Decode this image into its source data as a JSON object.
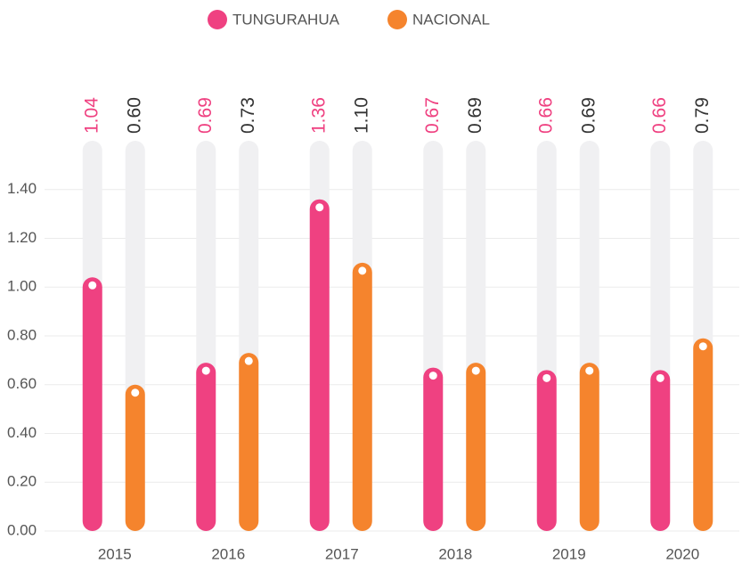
{
  "chart_data": {
    "type": "bar",
    "categories": [
      "2015",
      "2016",
      "2017",
      "2018",
      "2019",
      "2020"
    ],
    "series": [
      {
        "name": "TUNGURAHUA",
        "color": "#ef4181",
        "values": [
          1.04,
          0.69,
          1.36,
          0.67,
          0.66,
          0.66
        ],
        "value_labels": [
          "1.04",
          "0.69",
          "1.36",
          "0.67",
          "0.66",
          "0.66"
        ]
      },
      {
        "name": "NACIONAL",
        "color": "#f5842d",
        "values": [
          0.6,
          0.73,
          1.1,
          0.69,
          0.69,
          0.79
        ],
        "value_labels": [
          "0.60",
          "0.73",
          "1.10",
          "0.69",
          "0.69",
          "0.79"
        ]
      }
    ],
    "ylim": [
      0,
      1.6
    ],
    "yticks": [
      {
        "value": 0,
        "label": "0.00"
      },
      {
        "value": 0.2,
        "label": "0.20"
      },
      {
        "value": 0.4,
        "label": "0.40"
      },
      {
        "value": 0.6,
        "label": "0.60"
      },
      {
        "value": 0.8,
        "label": "0.80"
      },
      {
        "value": 1.0,
        "label": "1.00"
      },
      {
        "value": 1.2,
        "label": "1.20"
      },
      {
        "value": 1.4,
        "label": "1.40"
      }
    ],
    "grid": true,
    "legend": "top"
  }
}
